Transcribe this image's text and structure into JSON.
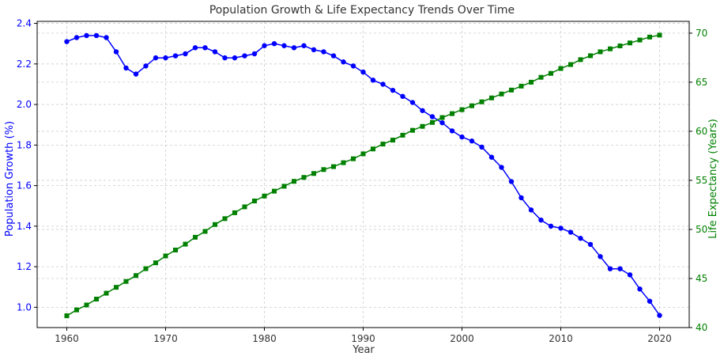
{
  "chart_data": {
    "type": "line",
    "title": "Population Growth & Life Expectancy Trends Over Time",
    "xlabel": "Year",
    "ylabel_left": "Population Growth (%)",
    "ylabel_right": "Life Expectancy (Years)",
    "xlim": [
      1957,
      2023
    ],
    "ylim_left": [
      0.9,
      2.41
    ],
    "ylim_right": [
      40,
      71.2
    ],
    "x_ticks": [
      1960,
      1970,
      1980,
      1990,
      2000,
      2010,
      2020
    ],
    "y_ticks_left": [
      1.0,
      1.2,
      1.4,
      1.6,
      1.8,
      2.0,
      2.2,
      2.4
    ],
    "y_ticks_right": [
      40,
      45,
      50,
      55,
      60,
      65,
      70
    ],
    "grid": true,
    "colors": {
      "left": "#0000ff",
      "right": "#008000",
      "grid": "#cccccc"
    },
    "x": [
      1960,
      1961,
      1962,
      1963,
      1964,
      1965,
      1966,
      1967,
      1968,
      1969,
      1970,
      1971,
      1972,
      1973,
      1974,
      1975,
      1976,
      1977,
      1978,
      1979,
      1980,
      1981,
      1982,
      1983,
      1984,
      1985,
      1986,
      1987,
      1988,
      1989,
      1990,
      1991,
      1992,
      1993,
      1994,
      1995,
      1996,
      1997,
      1998,
      1999,
      2000,
      2001,
      2002,
      2003,
      2004,
      2005,
      2006,
      2007,
      2008,
      2009,
      2010,
      2011,
      2012,
      2013,
      2014,
      2015,
      2016,
      2017,
      2018,
      2019,
      2020
    ],
    "series": [
      {
        "axis": "left",
        "marker": "circle",
        "color": "#0000ff",
        "values": [
          2.31,
          2.33,
          2.34,
          2.34,
          2.33,
          2.26,
          2.18,
          2.15,
          2.19,
          2.23,
          2.23,
          2.24,
          2.25,
          2.28,
          2.28,
          2.26,
          2.23,
          2.23,
          2.24,
          2.25,
          2.29,
          2.3,
          2.29,
          2.28,
          2.29,
          2.27,
          2.26,
          2.24,
          2.21,
          2.19,
          2.16,
          2.12,
          2.1,
          2.07,
          2.04,
          2.01,
          1.97,
          1.94,
          1.91,
          1.87,
          1.84,
          1.82,
          1.79,
          1.74,
          1.69,
          1.62,
          1.54,
          1.48,
          1.43,
          1.4,
          1.39,
          1.37,
          1.34,
          1.31,
          1.25,
          1.19,
          1.19,
          1.16,
          1.09,
          1.03,
          0.96
        ]
      },
      {
        "axis": "right",
        "marker": "square",
        "color": "#008000",
        "values": [
          41.2,
          41.8,
          42.3,
          42.9,
          43.5,
          44.1,
          44.7,
          45.3,
          46.0,
          46.6,
          47.3,
          47.9,
          48.5,
          49.2,
          49.8,
          50.5,
          51.1,
          51.7,
          52.3,
          52.9,
          53.4,
          53.9,
          54.4,
          54.9,
          55.3,
          55.7,
          56.1,
          56.4,
          56.8,
          57.2,
          57.7,
          58.2,
          58.7,
          59.1,
          59.6,
          60.1,
          60.5,
          60.9,
          61.4,
          61.8,
          62.2,
          62.6,
          63.0,
          63.4,
          63.8,
          64.2,
          64.6,
          65.0,
          65.5,
          65.9,
          66.4,
          66.8,
          67.3,
          67.7,
          68.1,
          68.4,
          68.7,
          69.0,
          69.3,
          69.6,
          69.8
        ]
      }
    ]
  }
}
